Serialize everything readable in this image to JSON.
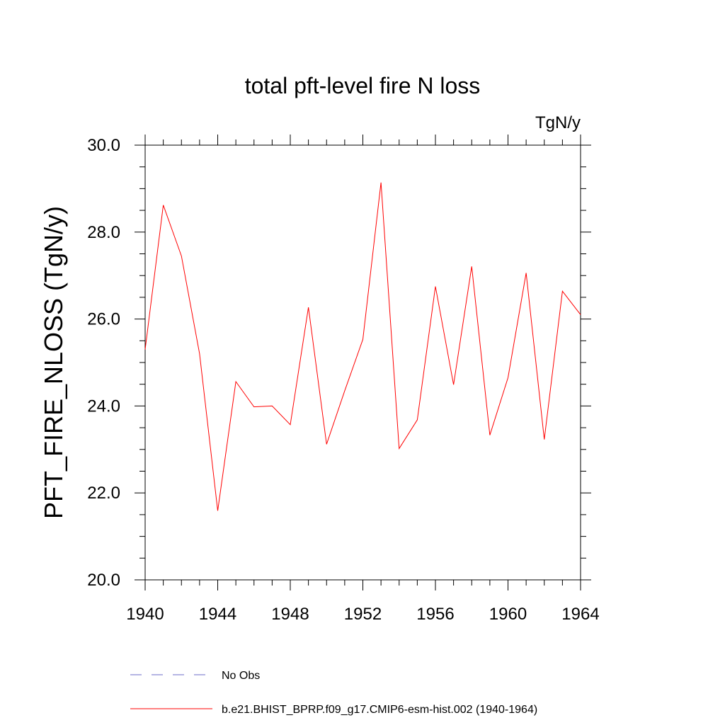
{
  "chart_data": {
    "type": "line",
    "title": "total pft-level fire N loss",
    "units_label": "TgN/y",
    "ylabel": "PFT_FIRE_NLOSS  (TgN/y)",
    "xlabel": "",
    "xlim": [
      1940,
      1964
    ],
    "ylim": [
      20,
      30
    ],
    "x_ticks": [
      1940,
      1944,
      1948,
      1952,
      1956,
      1960,
      1964
    ],
    "x_tick_labels": [
      "1940",
      "1944",
      "1948",
      "1952",
      "1956",
      "1960",
      "1964"
    ],
    "y_ticks": [
      20,
      22,
      24,
      26,
      28,
      30
    ],
    "y_tick_labels": [
      "20.0",
      "22.0",
      "24.0",
      "26.0",
      "28.0",
      "30.0"
    ],
    "grid": false,
    "legend_position": "bottom",
    "series": [
      {
        "name": "No Obs",
        "color": "#6c6cc8",
        "style": "dashed",
        "x": [],
        "y": []
      },
      {
        "name": "b.e21.BHIST_BPRP.f09_g17.CMIP6-esm-hist.002 (1940-1964)",
        "color": "#ff0000",
        "style": "solid",
        "x": [
          1940,
          1941,
          1942,
          1943,
          1944,
          1945,
          1946,
          1947,
          1948,
          1949,
          1950,
          1951,
          1952,
          1953,
          1954,
          1955,
          1956,
          1957,
          1958,
          1959,
          1960,
          1961,
          1962,
          1963,
          1964
        ],
        "y": [
          25.3,
          28.62,
          27.45,
          25.2,
          21.59,
          24.56,
          23.98,
          24.0,
          23.57,
          26.27,
          23.12,
          24.35,
          25.53,
          29.14,
          23.02,
          23.68,
          26.75,
          24.49,
          27.21,
          23.33,
          24.65,
          27.06,
          23.23,
          26.64,
          26.1
        ]
      }
    ]
  }
}
